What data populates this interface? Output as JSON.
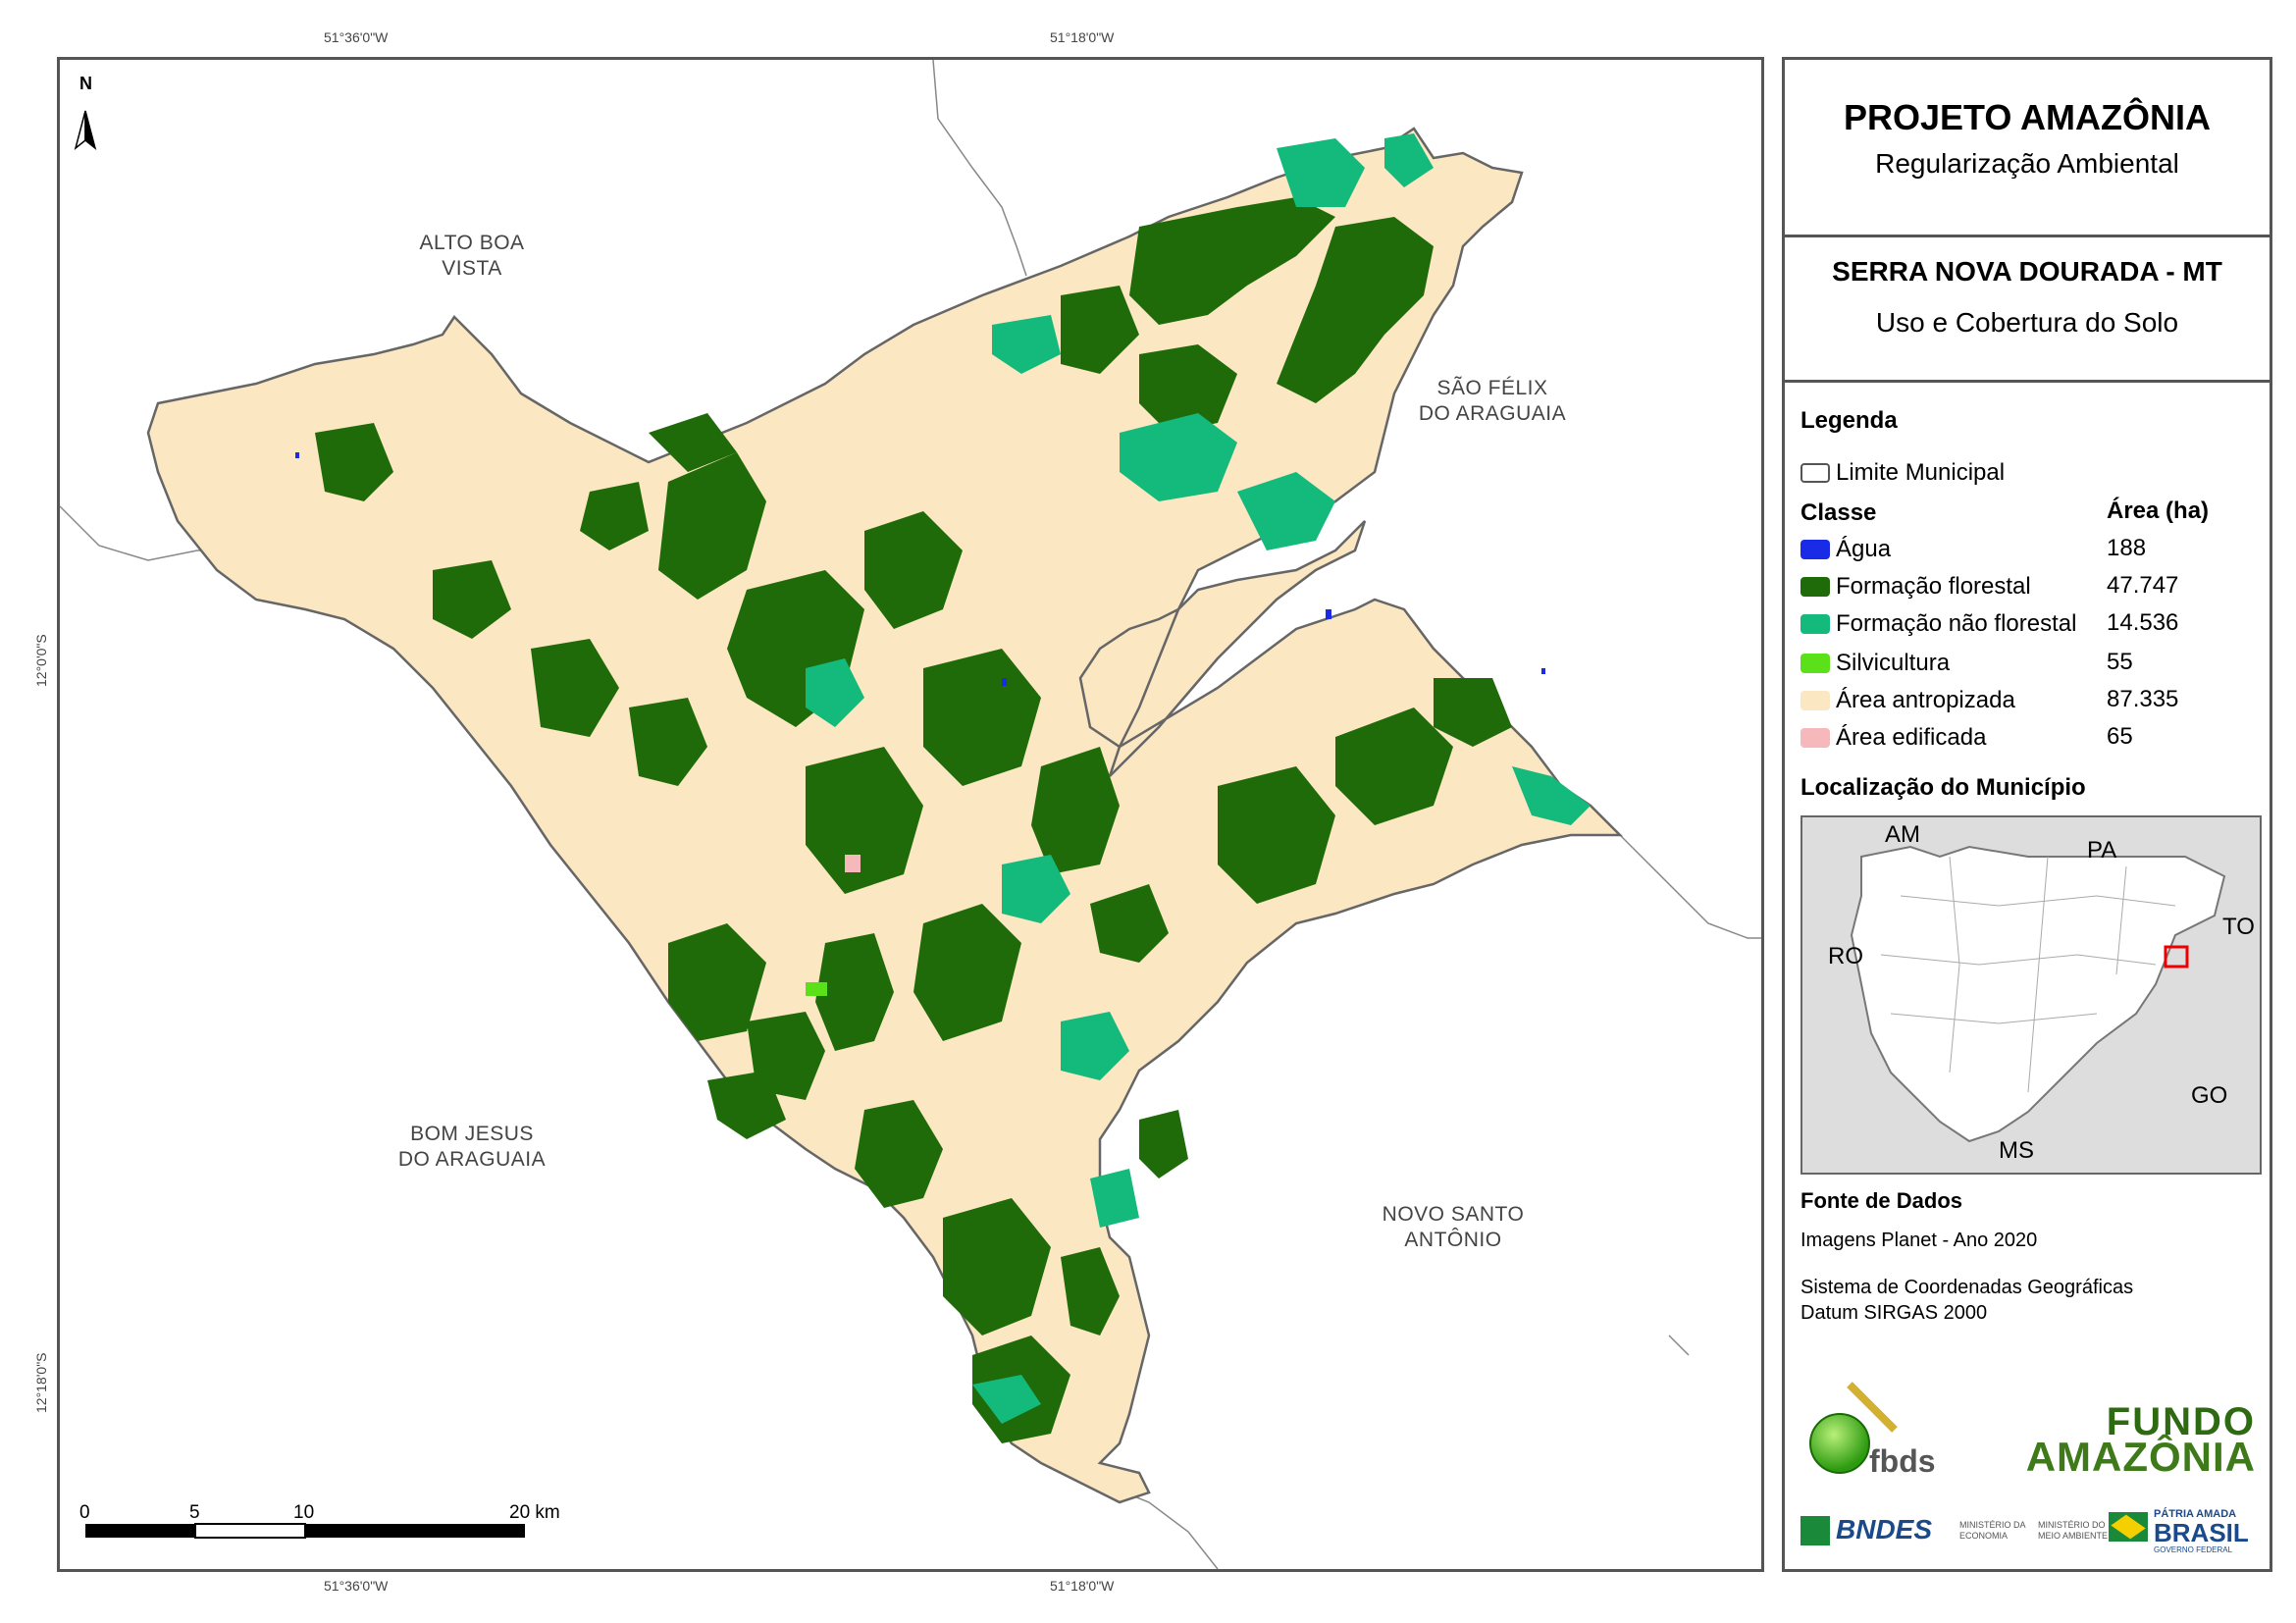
{
  "coords": {
    "top_left": "51°36'0\"W",
    "top_right": "51°18'0\"W",
    "bottom_left": "51°36'0\"W",
    "bottom_right": "51°18'0\"W",
    "left_top": "12°0'0\"S",
    "left_bottom": "12°18'0\"S"
  },
  "map": {
    "north_label": "N",
    "neighbors": {
      "alto_boa_vista": [
        "ALTO BOA",
        "VISTA"
      ],
      "sao_felix": [
        "SÃO FÉLIX",
        "DO ARAGUAIA"
      ],
      "bom_jesus": [
        "BOM JESUS",
        "DO ARAGUAIA"
      ],
      "novo_santo": [
        "NOVO SANTO",
        "ANTÔNIO"
      ]
    },
    "scale": {
      "labels": [
        "0",
        "5",
        "10",
        "20 km"
      ]
    }
  },
  "panel": {
    "title": "PROJETO AMAZÔNIA",
    "subtitle": "Regularização Ambiental",
    "municipality": "SERRA NOVA DOURADA - MT",
    "theme": "Uso e Cobertura do Solo",
    "legend_title": "Legenda",
    "boundary_label": "Limite Municipal",
    "class_header": "Classe",
    "area_header": "Área (ha)",
    "classes": [
      {
        "label": "Água",
        "value": "188",
        "color": "#1a2be8"
      },
      {
        "label": "Formação florestal",
        "value": "47.747",
        "color": "#1f6b0a"
      },
      {
        "label": "Formação não florestal",
        "value": "14.536",
        "color": "#14b97c"
      },
      {
        "label": "Silvicultura",
        "value": "55",
        "color": "#5be11a"
      },
      {
        "label": "Área antropizada",
        "value": "87.335",
        "color": "#fbe7c2"
      },
      {
        "label": "Área edificada",
        "value": "65",
        "color": "#f6b9bb"
      }
    ],
    "location_title": "Localização do Município",
    "states": {
      "am": "AM",
      "pa": "PA",
      "to": "TO",
      "ro": "RO",
      "go": "GO",
      "ms": "MS"
    },
    "source_title": "Fonte de Dados",
    "source_1": "Imagens Planet - Ano 2020",
    "source_2": "Sistema de Coordenadas Geográficas",
    "source_3": "Datum SIRGAS 2000",
    "logos": {
      "fbds": "fbds",
      "fundo_line1": "FUNDO",
      "fundo_line2": "AMAZÔNIA",
      "bndes": "BNDES",
      "min_eco": "MINISTÉRIO DA ECONOMIA",
      "min_amb": "MINISTÉRIO DO MEIO AMBIENTE",
      "patria": "PÁTRIA AMADA",
      "brasil": "BRASIL",
      "gov": "GOVERNO FEDERAL"
    }
  }
}
